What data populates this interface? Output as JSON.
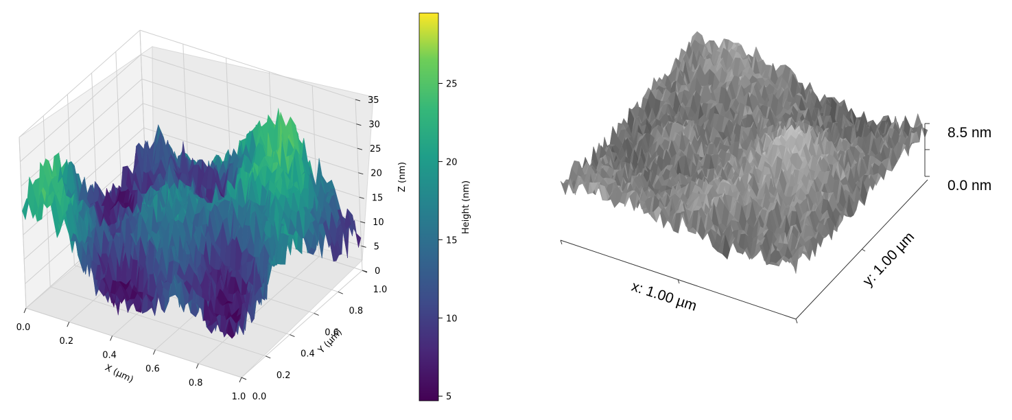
{
  "chart_data": [
    {
      "type": "surface3d",
      "colormap": "viridis",
      "xlabel": "X (µm)",
      "ylabel": "Y (µm)",
      "zlabel": "Z (nm)",
      "xlim": [
        0.0,
        1.0
      ],
      "ylim": [
        0.0,
        1.0
      ],
      "zlim": [
        0,
        35
      ],
      "x_ticks": [
        "0.0",
        "0.2",
        "0.4",
        "0.6",
        "0.8",
        "1.0"
      ],
      "y_ticks": [
        "0.0",
        "0.2",
        "0.4",
        "0.6",
        "0.8",
        "1.0"
      ],
      "z_ticks": [
        "0",
        "5",
        "10",
        "15",
        "20",
        "25",
        "30",
        "35"
      ],
      "grid": true,
      "colorbar": {
        "label": "Height (nm)",
        "range": [
          4.7,
          29.5
        ],
        "ticks": [
          "5",
          "10",
          "15",
          "20",
          "25"
        ]
      },
      "height_range_nm": [
        4.7,
        29.5
      ]
    },
    {
      "type": "surface3d",
      "colormap": "gray",
      "x_label": "x: 1.00 µm",
      "y_label": "y: 1.00 µm",
      "z_scale_labels": [
        "8.5 nm",
        "0.0 nm"
      ],
      "zlim": [
        0.0,
        8.5
      ]
    }
  ]
}
